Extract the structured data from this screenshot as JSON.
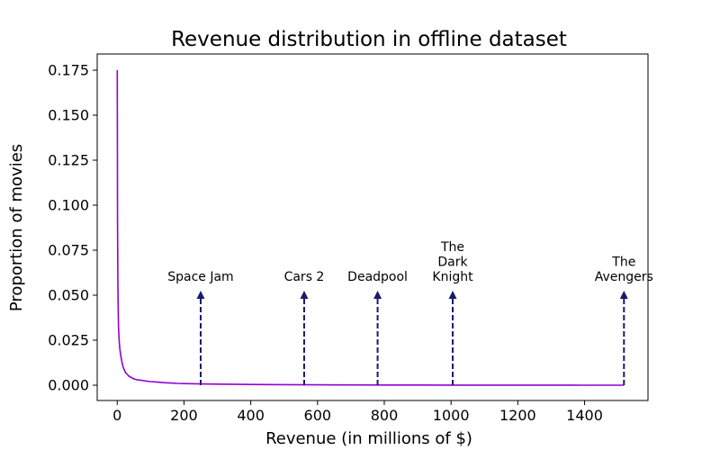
{
  "chart_data": {
    "type": "line",
    "title": "Revenue distribution in offline dataset",
    "xlabel": "Revenue (in millions of $)",
    "ylabel": "Proportion of movies",
    "xlim": [
      -60,
      1590
    ],
    "ylim": [
      -0.0085,
      0.184
    ],
    "x_ticks": [
      0,
      200,
      400,
      600,
      800,
      1000,
      1200,
      1400
    ],
    "y_ticks": [
      0.0,
      0.025,
      0.05,
      0.075,
      0.1,
      0.125,
      0.15,
      0.175
    ],
    "x_tick_labels": [
      "0",
      "200",
      "400",
      "600",
      "800",
      "1000",
      "1200",
      "1400"
    ],
    "y_tick_labels": [
      "0.000",
      "0.025",
      "0.050",
      "0.075",
      "0.100",
      "0.125",
      "0.150",
      "0.175"
    ],
    "grid": false,
    "line_color": "#9400D3",
    "arrow_color": "#191970",
    "series": [
      {
        "x": [
          0,
          1,
          2,
          3,
          4,
          5,
          6,
          8,
          10,
          12,
          15,
          18,
          20,
          25,
          30,
          35,
          40,
          45,
          50,
          60,
          70,
          80,
          90,
          100,
          120,
          140,
          160,
          180,
          200,
          250,
          300,
          400,
          500,
          600,
          700,
          800,
          900,
          1000,
          1100,
          1200,
          1300,
          1400,
          1500,
          1518
        ],
        "y": [
          0.175,
          0.09,
          0.055,
          0.04,
          0.032,
          0.028,
          0.024,
          0.02,
          0.017,
          0.015,
          0.012,
          0.01,
          0.009,
          0.007,
          0.006,
          0.005,
          0.0045,
          0.004,
          0.0035,
          0.003,
          0.0028,
          0.0025,
          0.0022,
          0.002,
          0.0017,
          0.0014,
          0.0012,
          0.001,
          0.0009,
          0.0007,
          0.0006,
          0.0004,
          0.0003,
          0.0002,
          0.00015,
          0.0001,
          0.0001,
          5e-05,
          5e-05,
          3e-05,
          3e-05,
          2e-05,
          2e-05,
          2e-05
        ]
      }
    ],
    "annotations": [
      {
        "x": 250,
        "y_tip": 0.052,
        "lines": [
          "Space Jam"
        ]
      },
      {
        "x": 560,
        "y_tip": 0.052,
        "lines": [
          "Cars 2"
        ]
      },
      {
        "x": 780,
        "y_tip": 0.052,
        "lines": [
          "Deadpool"
        ]
      },
      {
        "x": 1005,
        "y_tip": 0.052,
        "lines": [
          "The",
          "Dark",
          "Knight"
        ]
      },
      {
        "x": 1518,
        "y_tip": 0.052,
        "lines": [
          "The",
          "Avengers"
        ]
      }
    ]
  }
}
